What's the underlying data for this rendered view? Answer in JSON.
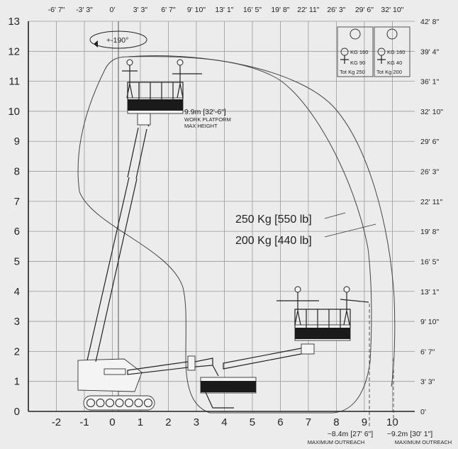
{
  "chart_data": {
    "type": "working-range-diagram",
    "x_axis_m": {
      "min": -2,
      "max": 10,
      "ticks": [
        "-2",
        "-1",
        "0",
        "1",
        "2",
        "3",
        "4",
        "5",
        "6",
        "7",
        "8",
        "9",
        "10"
      ]
    },
    "y_axis_m": {
      "min": 0,
      "max": 13,
      "ticks": [
        "0",
        "1",
        "2",
        "3",
        "4",
        "5",
        "6",
        "7",
        "8",
        "9",
        "10",
        "11",
        "12",
        "13"
      ]
    },
    "x_axis_ft_ticks": [
      "-6' 7\"",
      "-3' 3\"",
      "0'",
      "3' 3\"",
      "6' 7\"",
      "9' 10\"",
      "13' 1\"",
      "16' 5\"",
      "19' 8\"",
      "22' 11\"",
      "26' 3\"",
      "29' 6\"",
      "32' 10\""
    ],
    "y_axis_ft_ticks": [
      "0'",
      "3' 3\"",
      "6' 7\"",
      "9' 10\"",
      "13' 1\"",
      "16' 5\"",
      "19' 8\"",
      "22' 11\"",
      "26' 3\"",
      "29' 6\"",
      "32' 10\"",
      "36' 1\"",
      "39' 4\"",
      "42' 8\""
    ],
    "grid": true,
    "rotation_label": "+-190°",
    "annotations": {
      "max_height_value": "9.9m [32'-6\"]",
      "max_height_line1": "WORK PLATFORM",
      "max_height_line2": "MAX HEIGHT",
      "outreach_250_value": "~8.4m [27' 6\"]",
      "outreach_200_value": "~9.2m [30' 1\"]",
      "outreach_caption": "MAXIMUM OUTREACH"
    },
    "envelopes": [
      {
        "name": "250 Kg [550 lb]",
        "max_outreach_m": 8.4,
        "max_height_m": 9.9
      },
      {
        "name": "200 Kg [440 lb]",
        "max_outreach_m": 9.2,
        "max_height_m": 9.9
      }
    ],
    "load_boxes": [
      {
        "kg_top": "KG 160",
        "kg_bottom": "KG 90",
        "total": "Tot Kg 250"
      },
      {
        "kg_top": "KG 160",
        "kg_bottom": "KG 40",
        "total": "Tot Kg 200"
      }
    ]
  }
}
